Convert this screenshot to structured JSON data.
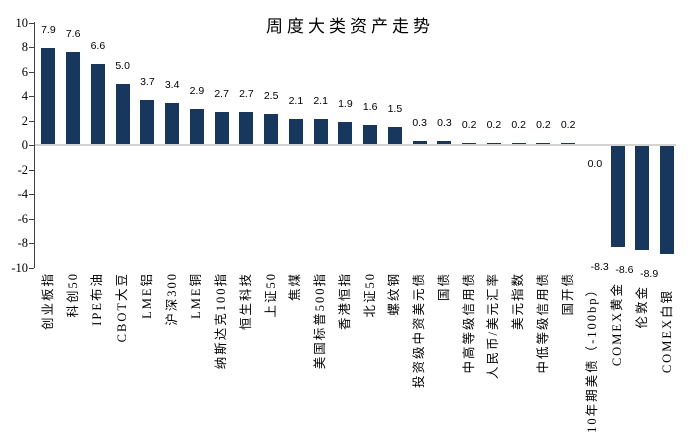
{
  "chart_data": {
    "type": "bar",
    "title": "周度大类资产走势",
    "categories": [
      "创业板指",
      "科创50",
      "IPE布油",
      "CBOT大豆",
      "LME铝",
      "沪深300",
      "LME铜",
      "纳斯达克100指",
      "恒生科技",
      "上证50",
      "焦煤",
      "美国标普500指",
      "香港恒指",
      "北证50",
      "螺纹钢",
      "投资级中资美元债",
      "国债",
      "中高等级信用债",
      "人民币/美元汇率",
      "美元指数",
      "中低等级信用债",
      "国开债",
      "10年期美债（-100bp）",
      "COMEX黄金",
      "伦敦金",
      "COMEX白银"
    ],
    "values": [
      7.9,
      7.6,
      6.6,
      5.0,
      3.7,
      3.4,
      2.9,
      2.7,
      2.7,
      2.5,
      2.1,
      2.1,
      1.9,
      1.6,
      1.5,
      0.3,
      0.3,
      0.2,
      0.2,
      0.2,
      0.2,
      0.2,
      0.0,
      -8.3,
      -8.6,
      -8.9
    ],
    "value_labels": [
      "7.9",
      "7.6",
      "6.6",
      "5.0",
      "3.7",
      "3.4",
      "2.9",
      "2.7",
      "2.7",
      "2.5",
      "2.1",
      "2.1",
      "1.9",
      "1.6",
      "1.5",
      "0.3",
      "0.3",
      "0.2",
      "0.2",
      "0.2",
      "0.2",
      "0.2",
      "0.0",
      "-8.3",
      "-8.6",
      "-8.9"
    ],
    "xlabel": "",
    "ylabel": "",
    "ylim": [
      -10,
      10
    ],
    "yticks": [
      10,
      8,
      6,
      4,
      2,
      0,
      -2,
      -4,
      -6,
      -8,
      -10
    ],
    "grid": false,
    "legend": "none",
    "colors": {
      "bar": "#17375d",
      "zero_line": "#d3d3d3",
      "axis": "#3f3f3f",
      "text": "#000000",
      "background": "#ffffff"
    }
  }
}
